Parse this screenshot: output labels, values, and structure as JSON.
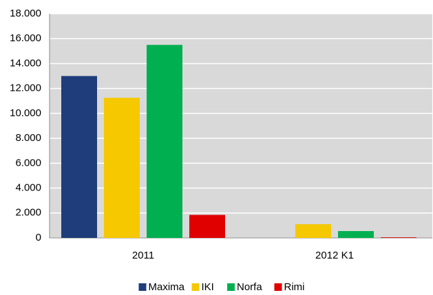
{
  "chart_data": {
    "type": "bar",
    "categories": [
      "2011",
      "2012 K1"
    ],
    "series": [
      {
        "name": "Maxima",
        "color": "#1f3d7a",
        "values": [
          13000,
          0
        ]
      },
      {
        "name": "IKI",
        "color": "#f5c800",
        "values": [
          11250,
          1100
        ]
      },
      {
        "name": "Norfa",
        "color": "#00b050",
        "values": [
          15500,
          550
        ]
      },
      {
        "name": "Rimi",
        "color": "#e00000",
        "values": [
          1850,
          50
        ]
      }
    ],
    "ylim": [
      0,
      18000
    ],
    "yticks": [
      0,
      {
        "value": 2000,
        "label": "2.000"
      },
      {
        "value": 4000,
        "label": "4.000"
      },
      {
        "value": 6000,
        "label": "6.000"
      },
      {
        "value": 8000,
        "label": "8.000"
      },
      {
        "value": 10000,
        "label": "10.000"
      },
      {
        "value": 12000,
        "label": "12.000"
      },
      {
        "value": 14000,
        "label": "14.000"
      },
      {
        "value": 16000,
        "label": "16.000"
      },
      {
        "value": 18000,
        "label": "18.000"
      }
    ],
    "grid": true,
    "legend": "bottom"
  }
}
